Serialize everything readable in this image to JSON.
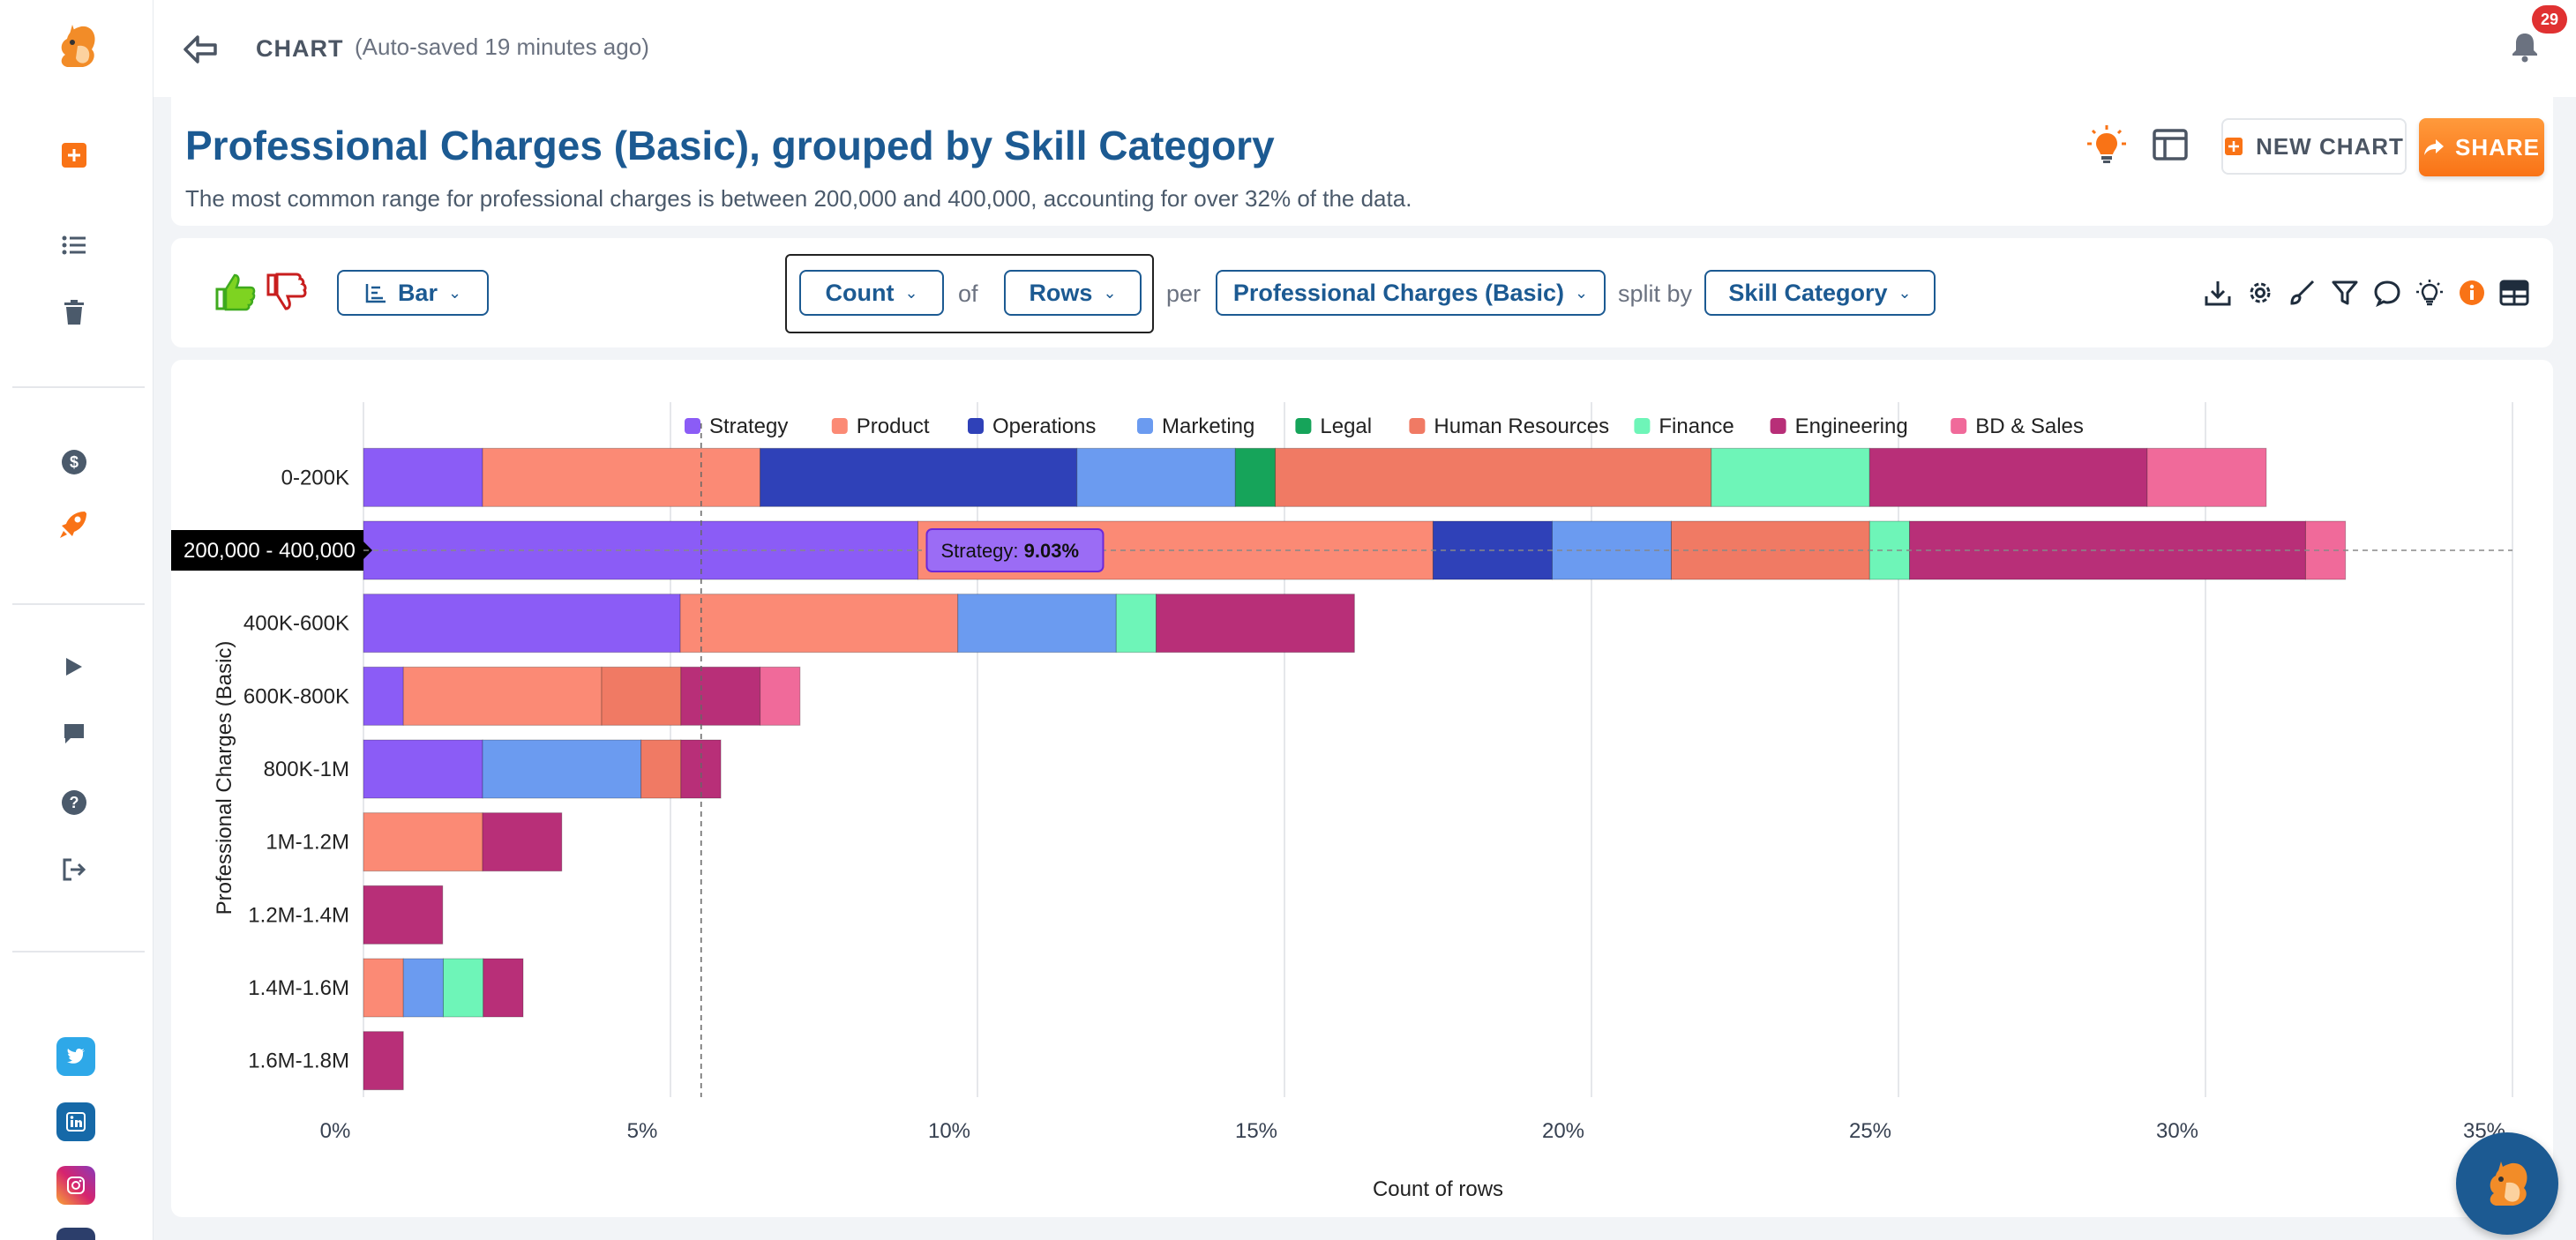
{
  "topbar": {
    "breadcrumb": "CHART",
    "autosave": "(Auto-saved 19 minutes ago)",
    "notification_count": "29"
  },
  "header": {
    "title": "Professional Charges (Basic), grouped by Skill Category",
    "subtitle": "The most common range for professional charges is between 200,000 and 400,000, accounting for over 32% of the data.",
    "new_chart_label": "NEW CHART",
    "share_label": "SHARE"
  },
  "toolbar": {
    "chart_type": "Bar",
    "aggregate": "Count",
    "of_text": "of",
    "measure": "Rows",
    "per_text": "per",
    "dimension": "Professional Charges (Basic)",
    "split_text": "split by",
    "split": "Skill Category"
  },
  "colors": {
    "brand": "#1c5a92",
    "accent": "#f97316"
  },
  "chart_data": {
    "type": "bar",
    "orientation": "horizontal",
    "stacked": true,
    "categories": [
      "0-200K",
      "200,000 - 400,000",
      "400K-600K",
      "600K-800K",
      "800K-1M",
      "1M-1.2M",
      "1.2M-1.4M",
      "1.4M-1.6M",
      "1.6M-1.8M"
    ],
    "series": [
      {
        "name": "Strategy",
        "color": "#8b5cf6",
        "values": [
          1.94,
          9.03,
          5.16,
          0.65,
          1.94,
          0,
          0,
          0,
          0
        ]
      },
      {
        "name": "Product",
        "color": "#fb8a75",
        "values": [
          4.52,
          8.39,
          4.52,
          3.23,
          0,
          1.94,
          0,
          0.65,
          0
        ]
      },
      {
        "name": "Operations",
        "color": "#2f41b8",
        "values": [
          5.16,
          1.94,
          0,
          0,
          0,
          0,
          0,
          0,
          0
        ]
      },
      {
        "name": "Marketing",
        "color": "#6b9bf0",
        "values": [
          2.58,
          1.94,
          2.58,
          0,
          2.58,
          0,
          0,
          0.65,
          0
        ]
      },
      {
        "name": "Legal",
        "color": "#16a45a",
        "values": [
          0.65,
          0,
          0,
          0,
          0,
          0,
          0,
          0,
          0
        ]
      },
      {
        "name": "Human Resources",
        "color": "#f07a64",
        "values": [
          7.1,
          3.23,
          0,
          1.29,
          0.65,
          0,
          0,
          0,
          0
        ]
      },
      {
        "name": "Finance",
        "color": "#6ef5b8",
        "values": [
          2.58,
          0.65,
          0.65,
          0,
          0,
          0,
          0,
          0.65,
          0
        ]
      },
      {
        "name": "Engineering",
        "color": "#b82f78",
        "values": [
          4.52,
          6.45,
          3.23,
          1.29,
          0.65,
          1.29,
          1.29,
          0.65,
          0.65
        ]
      },
      {
        "name": "BD & Sales",
        "color": "#f06a9a",
        "values": [
          1.94,
          0.65,
          0,
          0.65,
          0,
          0,
          0,
          0,
          0
        ]
      }
    ],
    "xlabel": "Count of rows",
    "ylabel": "Professional Charges (Basic)",
    "xlim": [
      0,
      35
    ],
    "xticks": [
      0,
      5,
      10,
      15,
      20,
      25,
      30,
      35
    ],
    "xtick_labels": [
      "0%",
      "5%",
      "10%",
      "15%",
      "20%",
      "25%",
      "30%",
      "35%"
    ],
    "legend_position": "top",
    "grid": true,
    "crosshair_x": 5.5,
    "hover_category": "200,000 - 400,000",
    "tooltip": {
      "label": "Strategy:",
      "value": "9.03%"
    }
  }
}
